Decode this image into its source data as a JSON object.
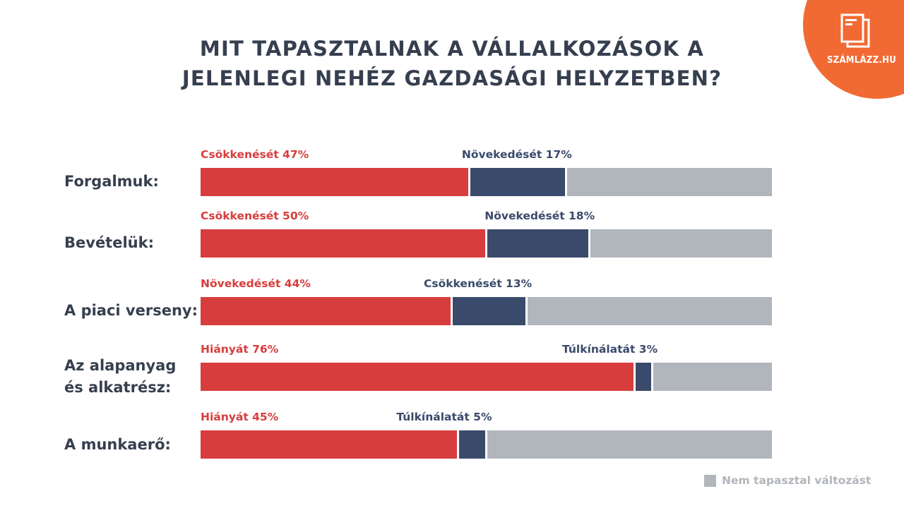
{
  "brand": {
    "name": "SZÁMLÁZZ.HU",
    "color": "#f26a33",
    "icon": "document-stack-icon"
  },
  "chart_data": {
    "type": "bar",
    "orientation": "horizontal",
    "stacked": true,
    "title": "MIT TAPASZTALNAK A VÁLLALKOZÁSOK A JELENLEGI NEHÉZ GAZDASÁGI HELYZETBEN?",
    "title_lines": [
      "MIT TAPASZTALNAK A VÁLLALKOZÁSOK A",
      "JELENLEGI NEHÉZ GAZDASÁGI HELYZETBEN?"
    ],
    "xlabel": "",
    "ylabel": "",
    "xlim": [
      0,
      100
    ],
    "unit": "%",
    "grid": false,
    "colors": {
      "primary": "#d83d3d",
      "secondary": "#3a4a6b",
      "rest": "#b1b6bc"
    },
    "categories": [
      "Forgalmuk:",
      "Bevételük:",
      "A piaci verseny:",
      "Az alapanyag és alkatrész:",
      "A munkaerő:"
    ],
    "category_lines": [
      [
        "Forgalmuk:"
      ],
      [
        "Bevételük:"
      ],
      [
        "A piaci verseny:"
      ],
      [
        "Az alapanyag",
        "és alkatrész:"
      ],
      [
        "A munkaerő:"
      ]
    ],
    "rows": [
      {
        "category": "Forgalmuk:",
        "primary": {
          "name": "Csökkenését",
          "value": 47,
          "label": "Csökkenését 47%"
        },
        "secondary": {
          "name": "Növekedését",
          "value": 17,
          "label": "Növekedését 17%"
        },
        "rest": {
          "name": "Nem tapasztal változást",
          "value": 36
        }
      },
      {
        "category": "Bevételük:",
        "primary": {
          "name": "Csökkenését",
          "value": 50,
          "label": "Csökkenését 50%"
        },
        "secondary": {
          "name": "Növekedését",
          "value": 18,
          "label": "Növekedését 18%"
        },
        "rest": {
          "name": "Nem tapasztal változást",
          "value": 32
        }
      },
      {
        "category": "A piaci verseny:",
        "primary": {
          "name": "Növekedését",
          "value": 44,
          "label": "Növekedését 44%"
        },
        "secondary": {
          "name": "Csökkenését",
          "value": 13,
          "label": "Csökkenését 13%"
        },
        "rest": {
          "name": "Nem tapasztal változást",
          "value": 43
        }
      },
      {
        "category": "Az alapanyag és alkatrész:",
        "primary": {
          "name": "Hiányát",
          "value": 76,
          "label": "Hiányát 76%"
        },
        "secondary": {
          "name": "Túlkínálatát",
          "value": 3,
          "label": "Túlkínálatát 3%"
        },
        "rest": {
          "name": "Nem tapasztal változást",
          "value": 21
        }
      },
      {
        "category": "A munkaerő:",
        "primary": {
          "name": "Hiányát",
          "value": 45,
          "label": "Hiányát 45%"
        },
        "secondary": {
          "name": "Túlkínálatát",
          "value": 5,
          "label": "Túlkínálatát 5%"
        },
        "rest": {
          "name": "Nem tapasztal változást",
          "value": 50
        }
      }
    ],
    "legend": {
      "entries": [
        {
          "label": "Nem tapasztal változást",
          "color": "#b1b6bc"
        }
      ],
      "position": "bottom-right"
    }
  }
}
